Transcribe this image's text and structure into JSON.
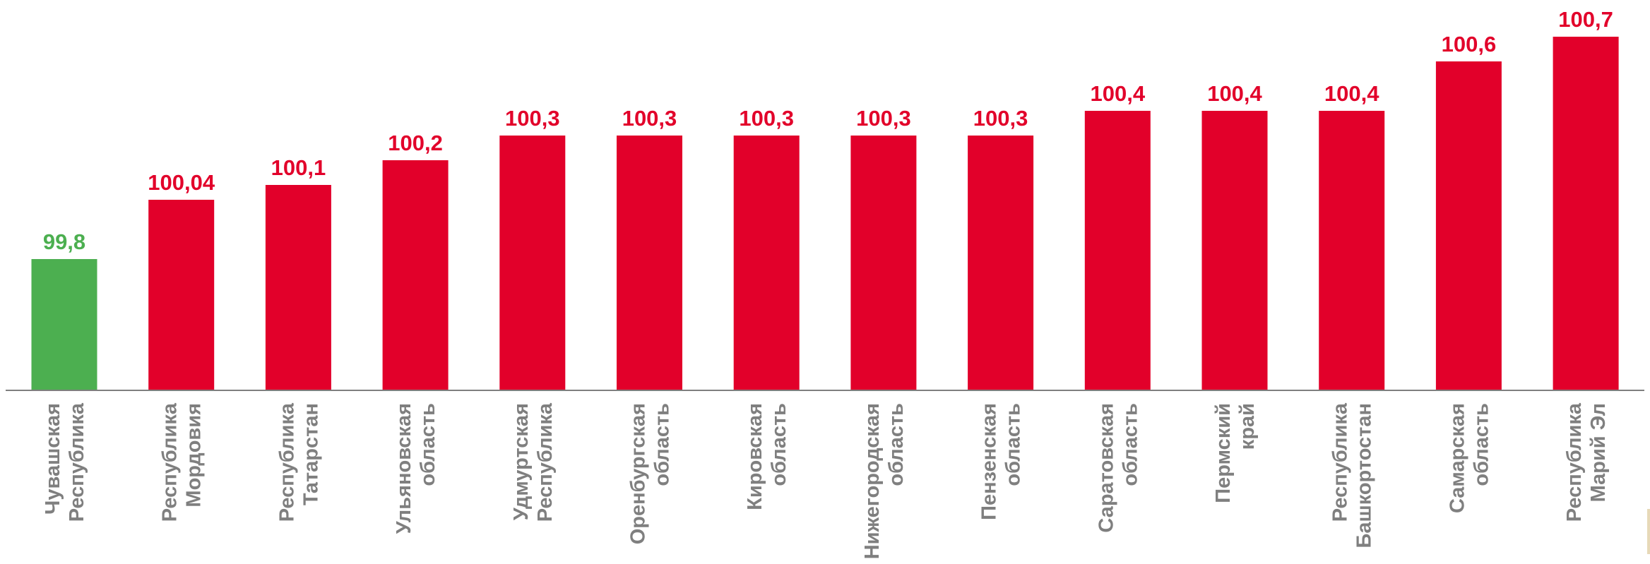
{
  "chart_data": {
    "type": "bar",
    "categories": [
      [
        "Чувашская",
        "Республика"
      ],
      [
        "Республика",
        "Мордовия"
      ],
      [
        "Республика",
        "Татарстан"
      ],
      [
        "Ульяновская",
        "область"
      ],
      [
        "Удмуртская",
        "Республика"
      ],
      [
        "Оренбургская",
        "область"
      ],
      [
        "Кировская",
        "область"
      ],
      [
        "Нижегородская",
        "область"
      ],
      [
        "Пензенская",
        "область"
      ],
      [
        "Саратовская",
        "область"
      ],
      [
        "Пермский",
        "край"
      ],
      [
        "Республика",
        "Башкортостан"
      ],
      [
        "Самарская",
        "область"
      ],
      [
        "Республика",
        "Марий Эл"
      ]
    ],
    "values": [
      99.8,
      100.04,
      100.1,
      100.2,
      100.3,
      100.3,
      100.3,
      100.3,
      100.3,
      100.4,
      100.4,
      100.4,
      100.6,
      100.7
    ],
    "value_labels": [
      "99,8",
      "100,04",
      "100,1",
      "100,2",
      "100,3",
      "100,3",
      "100,3",
      "100,3",
      "100,3",
      "100,4",
      "100,4",
      "100,4",
      "100,6",
      "100,7"
    ],
    "highlight_index": 0,
    "colors": {
      "highlight": "#4caf50",
      "default": "#e2002a",
      "axis": "#7f7f7f",
      "category_text": "#7f7f7f"
    },
    "title": "",
    "xlabel": "",
    "ylabel": "",
    "grid": false,
    "legend": "none"
  }
}
